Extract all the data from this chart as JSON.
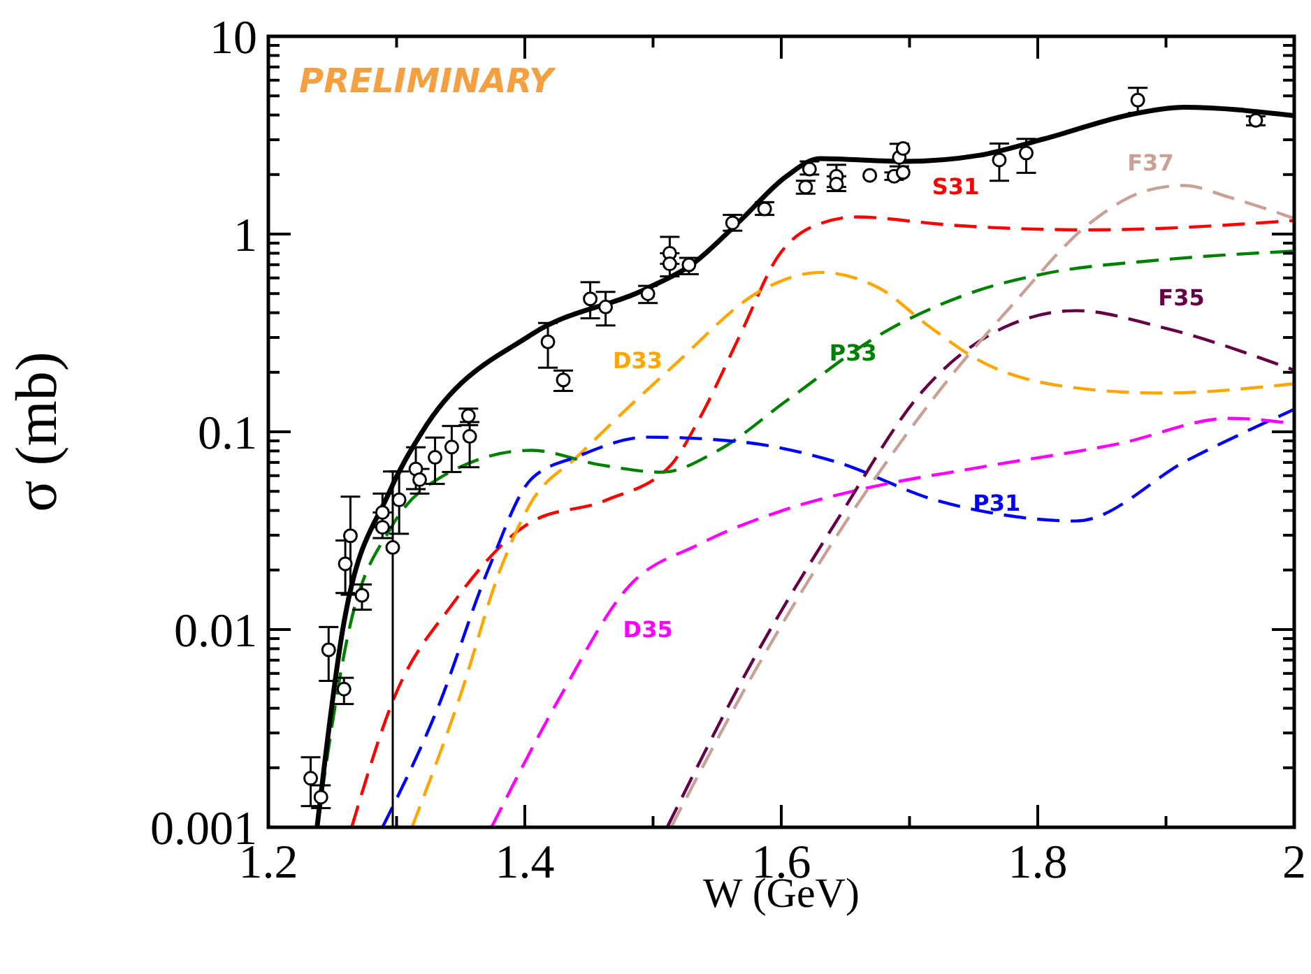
{
  "chart_data": {
    "type": "line",
    "xlabel": "W (GeV)",
    "ylabel": "σ (mb)",
    "log": "y",
    "xlim": [
      1.2,
      2
    ],
    "ylim": [
      0.001,
      10
    ],
    "xticks": [
      1.2,
      {
        "value": 1.3,
        "label": null
      },
      1.4,
      {
        "value": 1.5,
        "label": null
      },
      1.6,
      {
        "value": 1.7,
        "label": null
      },
      1.8,
      {
        "value": 1.9,
        "label": null
      },
      2
    ],
    "yticks": [
      0.001,
      {
        "value": 0.002,
        "label": null
      },
      {
        "value": 0.003,
        "label": null
      },
      {
        "value": 0.004,
        "label": null
      },
      {
        "value": 0.005,
        "label": null
      },
      {
        "value": 0.006,
        "label": null
      },
      {
        "value": 0.007,
        "label": null
      },
      {
        "value": 0.008,
        "label": null
      },
      {
        "value": 0.009,
        "label": null
      },
      0.01,
      {
        "value": 0.02,
        "label": null
      },
      {
        "value": 0.03,
        "label": null
      },
      {
        "value": 0.04,
        "label": null
      },
      {
        "value": 0.05,
        "label": null
      },
      {
        "value": 0.06,
        "label": null
      },
      {
        "value": 0.07,
        "label": null
      },
      {
        "value": 0.08,
        "label": null
      },
      {
        "value": 0.09,
        "label": null
      },
      0.1,
      {
        "value": 0.2,
        "label": null
      },
      {
        "value": 0.3,
        "label": null
      },
      {
        "value": 0.4,
        "label": null
      },
      {
        "value": 0.5,
        "label": null
      },
      {
        "value": 0.6,
        "label": null
      },
      {
        "value": 0.7,
        "label": null
      },
      {
        "value": 0.8,
        "label": null
      },
      {
        "value": 0.9,
        "label": null
      },
      1,
      {
        "value": 2,
        "label": null
      },
      {
        "value": 3,
        "label": null
      },
      {
        "value": 4,
        "label": null
      },
      {
        "value": 5,
        "label": null
      },
      {
        "value": 6,
        "label": null
      },
      {
        "value": 7,
        "label": null
      },
      {
        "value": 8,
        "label": null
      },
      {
        "value": 9,
        "label": null
      },
      10
    ],
    "grid": false,
    "annotations": [
      "PRELIMINARY"
    ],
    "series": [
      {
        "name": "S31",
        "color": "#ff0000",
        "line_style": "dashed",
        "x": [
          1.265,
          1.298,
          1.343,
          1.405,
          1.463,
          1.514,
          1.536,
          1.568,
          1.598,
          1.623,
          1.659,
          1.713,
          1.732,
          1.841,
          2.0
        ],
        "values": [
          0.001,
          0.0045,
          0.0133,
          0.035,
          0.045,
          0.068,
          0.116,
          0.31,
          0.78,
          1.08,
          1.22,
          1.14,
          1.11,
          1.05,
          1.17
        ]
      },
      {
        "name": "D33",
        "color": "#ffa500",
        "line_style": "dashed",
        "x": [
          1.312,
          1.35,
          1.38,
          1.405,
          1.441,
          1.514,
          1.587,
          1.63,
          1.677,
          1.713,
          1.754,
          1.82,
          1.895,
          2.0
        ],
        "values": [
          0.001,
          0.0047,
          0.0194,
          0.044,
          0.075,
          0.21,
          0.53,
          0.64,
          0.53,
          0.35,
          0.23,
          0.17,
          0.157,
          0.175
        ]
      },
      {
        "name": "P33",
        "color": "#008000",
        "line_style": "dashed",
        "x": [
          1.238,
          1.263,
          1.296,
          1.332,
          1.405,
          1.459,
          1.507,
          1.55,
          1.605,
          1.677,
          1.754,
          1.805,
          1.896,
          2.0
        ],
        "values": [
          0.001,
          0.01,
          0.033,
          0.0576,
          0.0806,
          0.068,
          0.0625,
          0.08,
          0.145,
          0.31,
          0.52,
          0.63,
          0.74,
          0.82
        ]
      },
      {
        "name": "P31",
        "color": "#0000ff",
        "line_style": "dashed",
        "x": [
          1.289,
          1.332,
          1.372,
          1.405,
          1.441,
          1.496,
          1.568,
          1.641,
          1.721,
          1.754,
          1.83,
          1.917,
          2.0
        ],
        "values": [
          0.001,
          0.004,
          0.0205,
          0.0576,
          0.075,
          0.094,
          0.089,
          0.071,
          0.045,
          0.04,
          0.0354,
          0.072,
          0.13
        ]
      },
      {
        "name": "D35",
        "color": "#ff00ff",
        "line_style": "dashed",
        "x": [
          1.374,
          1.427,
          1.481,
          1.536,
          1.601,
          1.667,
          1.754,
          1.863,
          1.95,
          2.0
        ],
        "values": [
          0.001,
          0.0045,
          0.0165,
          0.027,
          0.04,
          0.052,
          0.066,
          0.087,
          0.117,
          0.11
        ]
      },
      {
        "name": "F35",
        "color": "#660044",
        "line_style": "dashed",
        "x": [
          1.511,
          1.579,
          1.645,
          1.71,
          1.775,
          1.83,
          1.895,
          2.0
        ],
        "values": [
          0.001,
          0.0072,
          0.037,
          0.16,
          0.34,
          0.41,
          0.34,
          0.205
        ]
      },
      {
        "name": "F37",
        "color": "#c8a096",
        "line_style": "dashed",
        "x": [
          1.514,
          1.579,
          1.645,
          1.732,
          1.779,
          1.841,
          1.885,
          1.914,
          1.95,
          2.0
        ],
        "values": [
          0.001,
          0.0061,
          0.031,
          0.19,
          0.43,
          1.14,
          1.66,
          1.76,
          1.53,
          1.2
        ]
      },
      {
        "color": "#000000",
        "line_style": "solid",
        "x": [
          1.238,
          1.258,
          1.294,
          1.32,
          1.405,
          1.495,
          1.53,
          1.568,
          1.604,
          1.63,
          1.696,
          1.754,
          1.805,
          1.877,
          1.914,
          2.0
        ],
        "values": [
          0.001,
          0.01,
          0.049,
          0.1,
          0.31,
          0.53,
          0.7,
          1.17,
          1.96,
          2.41,
          2.33,
          2.5,
          3.03,
          4.08,
          4.38,
          3.97
        ]
      },
      {
        "type": "scatter",
        "marker": "circle",
        "color": "#000000",
        "x": [
          1.233,
          1.241,
          1.247,
          1.259,
          1.26,
          1.264,
          1.273,
          1.289,
          1.289,
          1.297,
          1.302,
          1.315,
          1.318,
          1.33,
          1.343,
          1.356,
          1.357,
          1.418,
          1.43,
          1.451,
          1.463,
          1.496,
          1.513,
          1.513,
          1.528,
          1.562,
          1.587,
          1.619,
          1.622,
          1.643,
          1.643,
          1.669,
          1.688,
          1.692,
          1.695,
          1.695,
          1.77,
          1.791,
          1.878,
          1.97
        ],
        "values": [
          0.00177,
          0.00142,
          0.0079,
          0.005,
          0.0215,
          0.0298,
          0.0149,
          0.0391,
          0.0329,
          0.026,
          0.0453,
          0.0649,
          0.0573,
          0.0743,
          0.0837,
          0.1205,
          0.0948,
          0.285,
          0.183,
          0.47,
          0.428,
          0.499,
          0.8,
          0.707,
          0.699,
          1.14,
          1.34,
          1.73,
          2.13,
          1.96,
          1.79,
          1.98,
          1.96,
          2.44,
          2.71,
          2.05,
          2.37,
          2.57,
          4.76,
          3.76
        ],
        "errors": [
          [
            0.00128,
            0.00226
          ],
          [
            0.00125,
            0.00163
          ],
          [
            0.0055,
            0.0103
          ],
          [
            0.0042,
            0.0057
          ],
          [
            0.0153,
            0.0282
          ],
          [
            0.015,
            0.047
          ],
          [
            0.0126,
            0.0169
          ],
          [
            0.0329,
            0.0487
          ],
          [
            0.029,
            0.0391
          ],
          [
            0.001,
            0.063
          ],
          [
            0.0305,
            0.063
          ],
          [
            0.0513,
            0.0835
          ],
          [
            0.0487,
            0.0649
          ],
          [
            0.0545,
            0.0935
          ],
          [
            0.0626,
            0.107
          ],
          [
            0.108,
            0.131
          ],
          [
            0.0662,
            0.112
          ],
          [
            0.211,
            0.355
          ],
          [
            0.161,
            0.204
          ],
          [
            0.375,
            0.571
          ],
          [
            0.345,
            0.51
          ],
          [
            0.448,
            0.547
          ],
          [
            0.707,
            0.968
          ],
          [
            0.611,
            0.8
          ],
          [
            0.627,
            0.758
          ],
          [
            1.04,
            1.25
          ],
          [
            1.25,
            1.45
          ],
          [
            1.6,
            1.86
          ],
          [
            2.0,
            2.33
          ],
          [
            1.73,
            2.24
          ],
          [
            1.65,
            1.96
          ],
          null,
          [
            1.88,
            2.05
          ],
          [
            2.2,
            2.86
          ],
          null,
          null,
          [
            1.86,
            2.87
          ],
          [
            2.04,
            3.03
          ],
          [
            4.1,
            5.49
          ],
          [
            3.55,
            3.94
          ]
        ]
      }
    ]
  }
}
